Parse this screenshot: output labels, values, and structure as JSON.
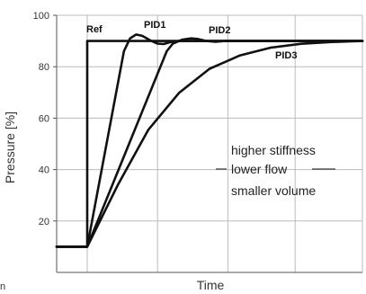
{
  "chart_data": {
    "type": "line",
    "xlabel": "Time",
    "ylabel": "Pressure [%]",
    "xlim": [
      0,
      100
    ],
    "ylim": [
      0,
      100
    ],
    "yticks": [
      20,
      40,
      60,
      80,
      100
    ],
    "x_gridlines": [
      10,
      33,
      56,
      78,
      100
    ],
    "grid": true,
    "series": [
      {
        "name": "Ref",
        "x": [
          0,
          10,
          10,
          100
        ],
        "y": [
          10,
          10,
          90,
          90
        ]
      },
      {
        "name": "PID1",
        "x": [
          0,
          10,
          22,
          24,
          26,
          28,
          31,
          33,
          35,
          37,
          40,
          100
        ],
        "y": [
          10,
          10,
          86,
          91,
          92.5,
          92,
          90,
          89,
          88.8,
          89.5,
          90,
          90
        ]
      },
      {
        "name": "PID2",
        "x": [
          0,
          10,
          36,
          38,
          41,
          44,
          46,
          49,
          52,
          55,
          100
        ],
        "y": [
          10,
          10,
          86,
          89,
          90.5,
          91,
          90.8,
          90,
          89.7,
          90,
          90
        ]
      },
      {
        "name": "PID3",
        "x": [
          0,
          10,
          20,
          30,
          40,
          50,
          60,
          70,
          80,
          90,
          100
        ],
        "y": [
          10,
          10,
          34,
          55.5,
          69.8,
          79.2,
          84.4,
          87.4,
          88.9,
          89.6,
          90
        ]
      }
    ],
    "annotations": [
      "higher stiffness",
      "lower flow",
      "smaller volume"
    ],
    "colors": {
      "line": "#111111",
      "grid": "#bbbbbb",
      "axis": "#555555"
    }
  },
  "stray_text": "n"
}
